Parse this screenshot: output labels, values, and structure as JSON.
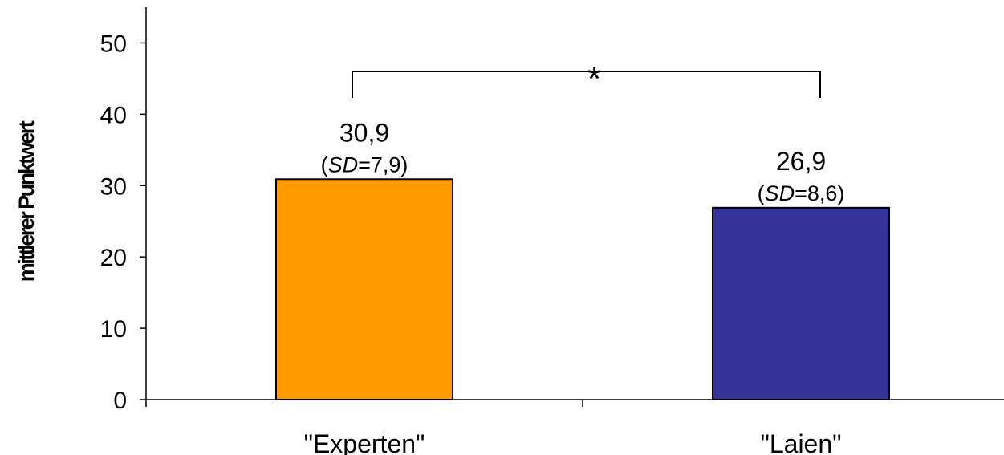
{
  "chart_data": {
    "type": "bar",
    "title": "",
    "xlabel": "",
    "ylabel": "mittlerer Punktwert",
    "ylim": [
      0,
      55
    ],
    "yticks": [
      0,
      10,
      20,
      30,
      40,
      50
    ],
    "grid": false,
    "categories": [
      "\"Experten\"",
      "\"Laien\""
    ],
    "values": [
      30.9,
      26.9
    ],
    "value_labels": [
      "30,9",
      "26,9"
    ],
    "sd_values": [
      "7,9",
      "8,6"
    ],
    "sd_prefix": "SD",
    "colors": [
      "#ff9900",
      "#333399"
    ],
    "significance": {
      "between": [
        0,
        1
      ],
      "level_value": 46,
      "marker": "*"
    }
  }
}
